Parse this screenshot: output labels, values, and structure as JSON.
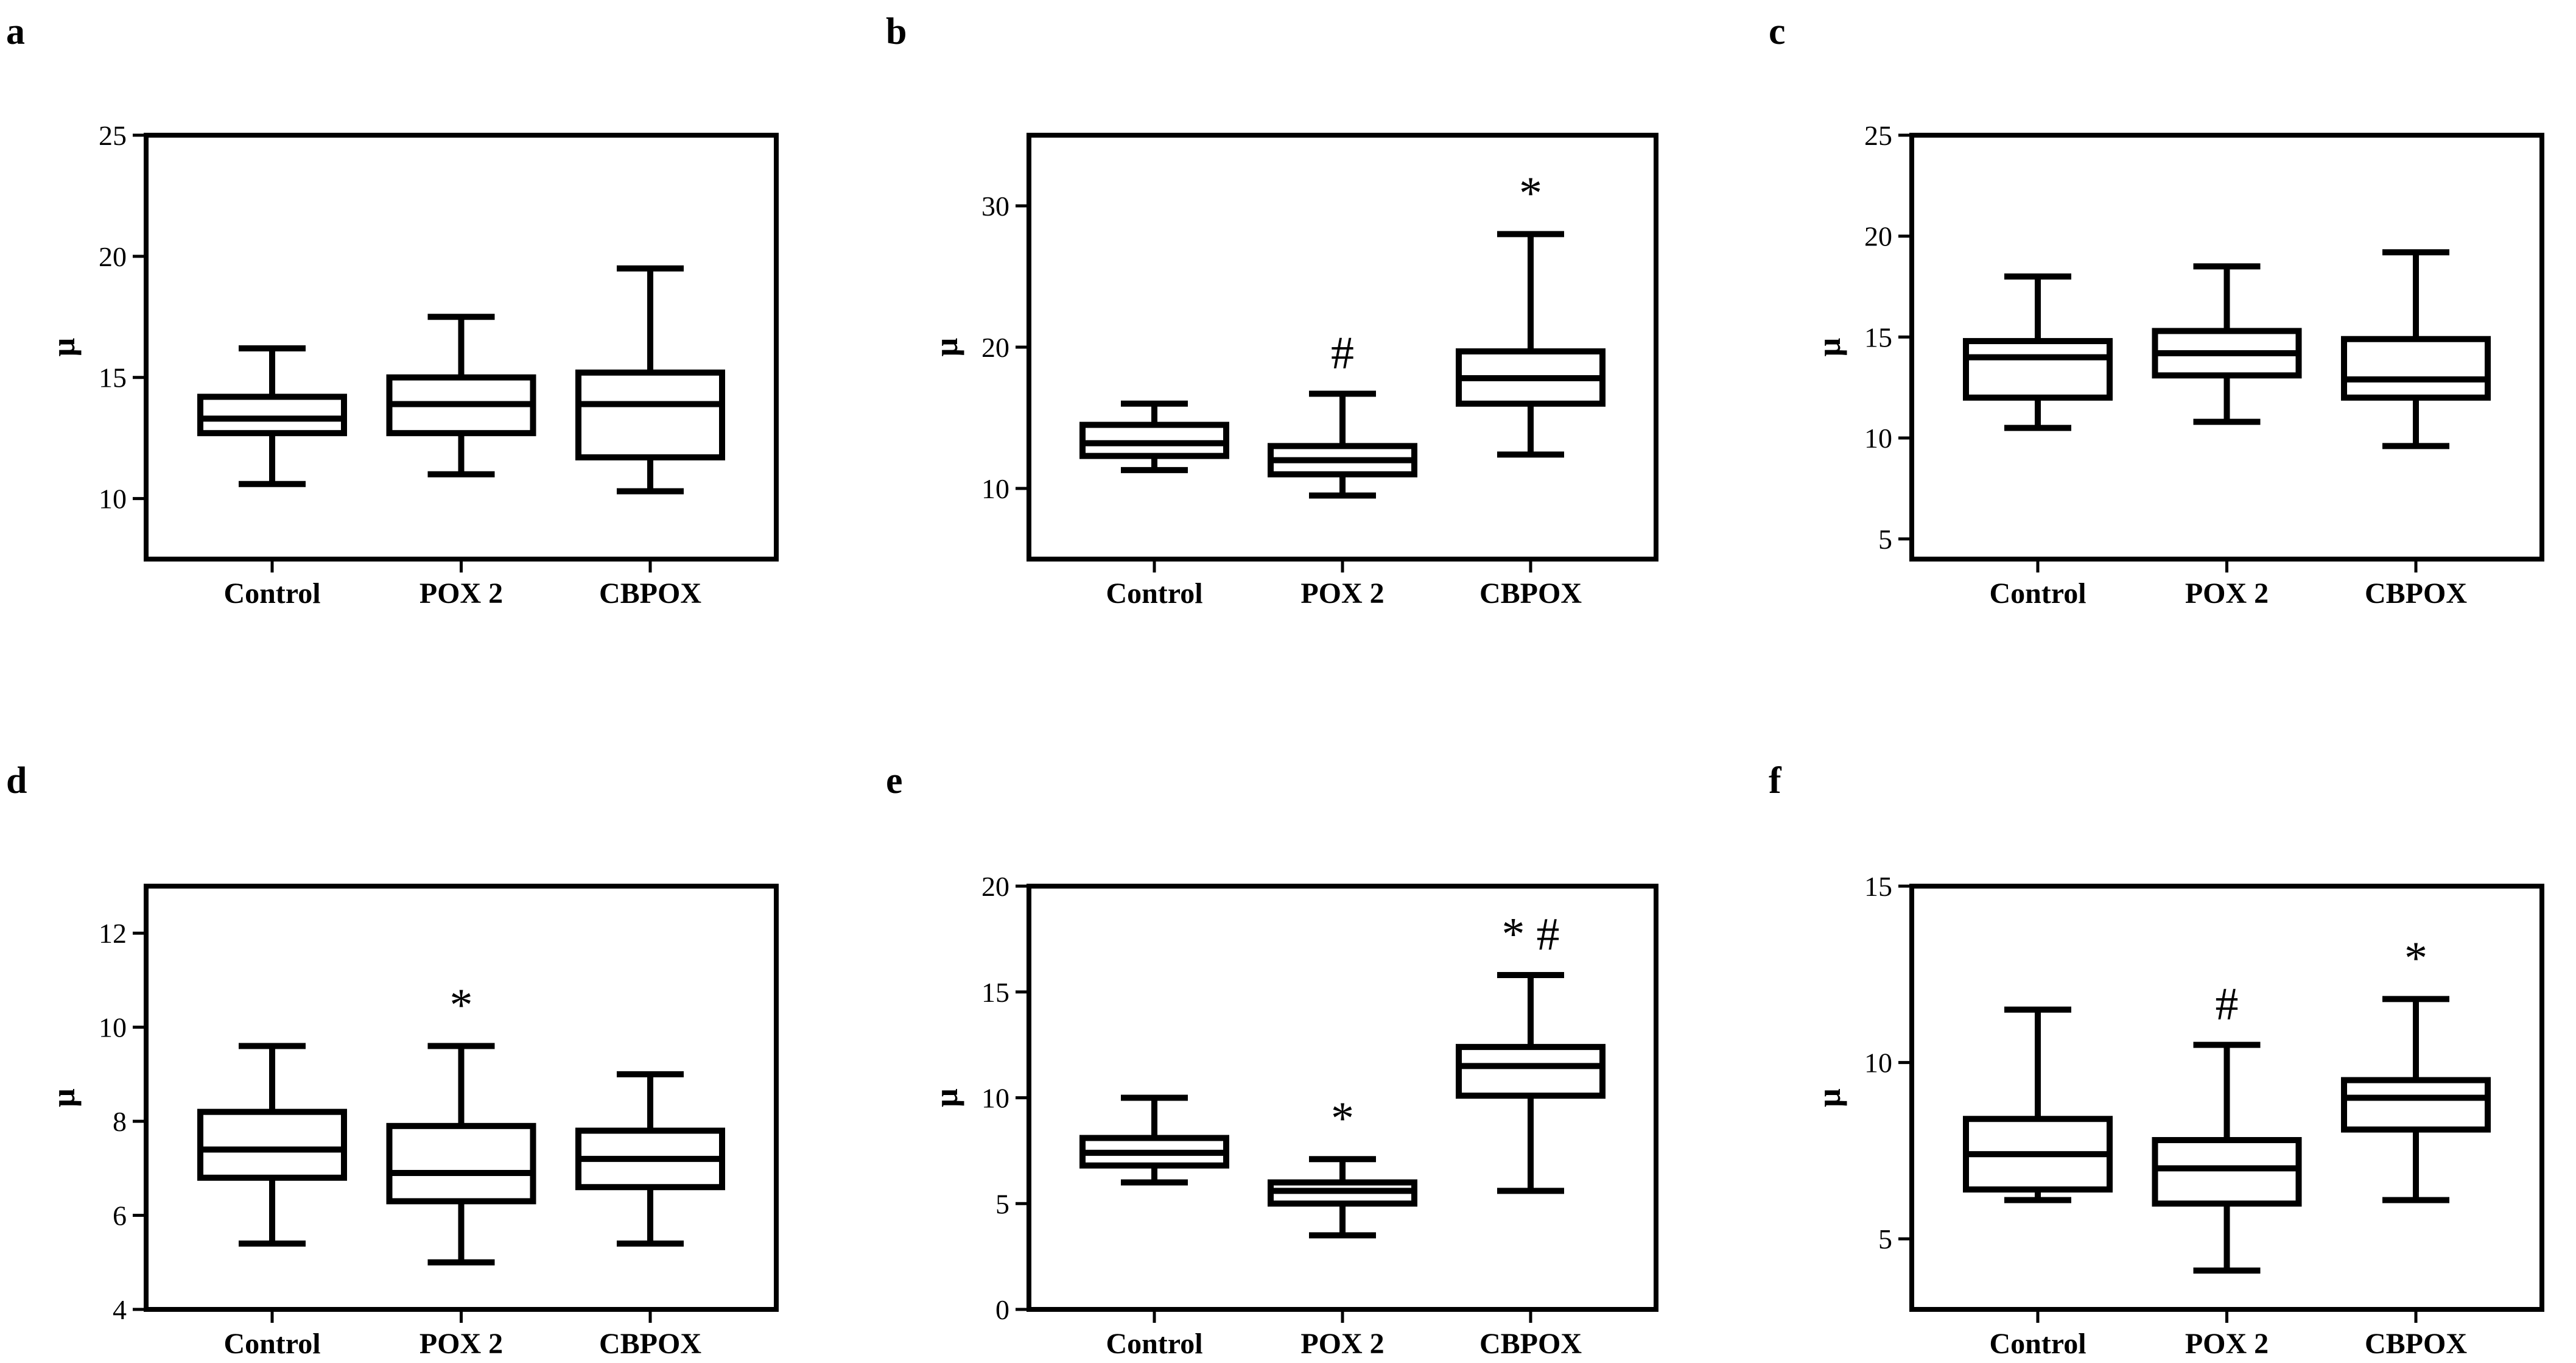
{
  "chart_data": [
    {
      "panel": "a",
      "type": "boxplot",
      "ylabel": "μ",
      "ylim": [
        7.5,
        25
      ],
      "yticks": [
        10,
        15,
        20,
        25
      ],
      "categories": [
        "Control",
        "POX 2",
        "CBPOX"
      ],
      "boxes": [
        {
          "min": 10.6,
          "q1": 12.7,
          "median": 13.3,
          "q3": 14.2,
          "max": 16.2,
          "annotation": ""
        },
        {
          "min": 11.0,
          "q1": 12.7,
          "median": 13.9,
          "q3": 15.0,
          "max": 17.5,
          "annotation": ""
        },
        {
          "min": 10.3,
          "q1": 11.7,
          "median": 13.9,
          "q3": 15.2,
          "max": 19.5,
          "annotation": ""
        }
      ]
    },
    {
      "panel": "b",
      "type": "boxplot",
      "ylabel": "μ",
      "ylim": [
        5,
        35
      ],
      "yticks": [
        10,
        20,
        30
      ],
      "categories": [
        "Control",
        "POX 2",
        "CBPOX"
      ],
      "boxes": [
        {
          "min": 11.3,
          "q1": 12.3,
          "median": 13.2,
          "q3": 14.5,
          "max": 16.0,
          "annotation": ""
        },
        {
          "min": 9.5,
          "q1": 11.0,
          "median": 12.0,
          "q3": 13.0,
          "max": 16.7,
          "annotation": "#"
        },
        {
          "min": 12.4,
          "q1": 16.0,
          "median": 17.8,
          "q3": 19.7,
          "max": 28.0,
          "annotation": "*"
        }
      ]
    },
    {
      "panel": "c",
      "type": "boxplot",
      "ylabel": "μ",
      "ylim": [
        4,
        25
      ],
      "yticks": [
        5,
        10,
        15,
        20,
        25
      ],
      "categories": [
        "Control",
        "POX 2",
        "CBPOX"
      ],
      "boxes": [
        {
          "min": 10.5,
          "q1": 12.0,
          "median": 14.0,
          "q3": 14.8,
          "max": 18.0,
          "annotation": ""
        },
        {
          "min": 10.8,
          "q1": 13.1,
          "median": 14.2,
          "q3": 15.3,
          "max": 18.5,
          "annotation": ""
        },
        {
          "min": 9.6,
          "q1": 12.0,
          "median": 12.9,
          "q3": 14.9,
          "max": 19.2,
          "annotation": ""
        }
      ]
    },
    {
      "panel": "d",
      "type": "boxplot",
      "ylabel": "μ",
      "ylim": [
        4,
        13
      ],
      "yticks": [
        4,
        6,
        8,
        10,
        12
      ],
      "categories": [
        "Control",
        "POX 2",
        "CBPOX"
      ],
      "boxes": [
        {
          "min": 5.4,
          "q1": 6.8,
          "median": 7.4,
          "q3": 8.2,
          "max": 9.6,
          "annotation": ""
        },
        {
          "min": 5.0,
          "q1": 6.3,
          "median": 6.9,
          "q3": 7.9,
          "max": 9.6,
          "annotation": "*"
        },
        {
          "min": 5.4,
          "q1": 6.6,
          "median": 7.2,
          "q3": 7.8,
          "max": 9.0,
          "annotation": ""
        }
      ]
    },
    {
      "panel": "e",
      "type": "boxplot",
      "ylabel": "μ",
      "ylim": [
        0,
        20
      ],
      "yticks": [
        0,
        5,
        10,
        15,
        20
      ],
      "categories": [
        "Control",
        "POX 2",
        "CBPOX"
      ],
      "boxes": [
        {
          "min": 6.0,
          "q1": 6.8,
          "median": 7.4,
          "q3": 8.1,
          "max": 10.0,
          "annotation": ""
        },
        {
          "min": 3.5,
          "q1": 5.0,
          "median": 5.6,
          "q3": 6.0,
          "max": 7.1,
          "annotation": "*"
        },
        {
          "min": 5.6,
          "q1": 10.1,
          "median": 11.5,
          "q3": 12.4,
          "max": 15.8,
          "annotation": "* #"
        }
      ]
    },
    {
      "panel": "f",
      "type": "boxplot",
      "ylabel": "μ",
      "ylim": [
        3,
        15
      ],
      "yticks": [
        5,
        10,
        15
      ],
      "categories": [
        "Control",
        "POX 2",
        "CBPOX"
      ],
      "boxes": [
        {
          "min": 6.1,
          "q1": 6.4,
          "median": 7.4,
          "q3": 8.4,
          "max": 11.5,
          "annotation": ""
        },
        {
          "min": 4.1,
          "q1": 6.0,
          "median": 7.0,
          "q3": 7.8,
          "max": 10.5,
          "annotation": "#"
        },
        {
          "min": 6.1,
          "q1": 8.1,
          "median": 9.0,
          "q3": 9.5,
          "max": 11.8,
          "annotation": "*"
        }
      ]
    }
  ]
}
